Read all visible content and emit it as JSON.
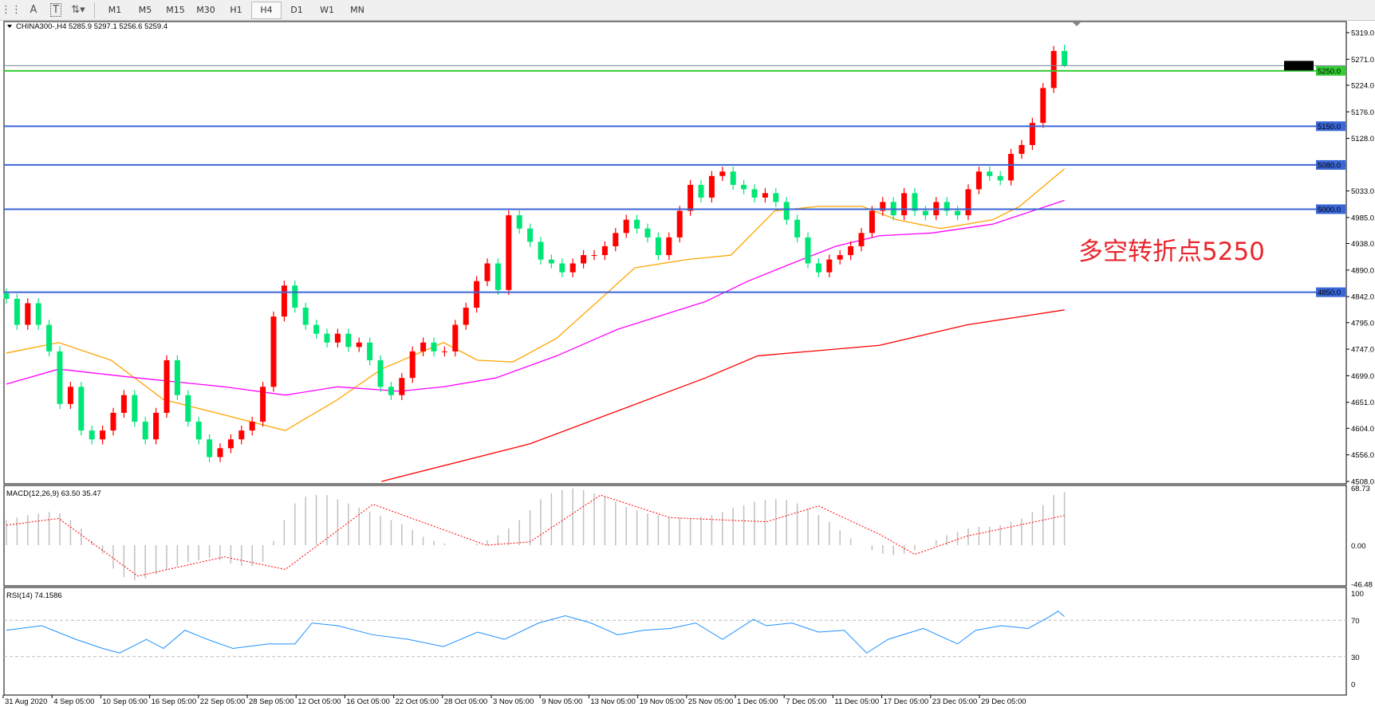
{
  "toolbar": {
    "icons": [
      "grid-period-separators-icon",
      "text-icon",
      "text-label-icon",
      "arrows-icon"
    ],
    "text_icon_glyph": "A",
    "text_label_glyph": "T",
    "timeframes": [
      "M1",
      "M5",
      "M15",
      "M30",
      "H1",
      "H4",
      "D1",
      "W1",
      "MN"
    ],
    "selected_timeframe": "H4"
  },
  "chart": {
    "header": "CHINA300-,H4  5285.9 5297.1 5256.6 5259.4",
    "symbol": "CHINA300-",
    "period": "H4",
    "last_ohlc": {
      "open": 5285.9,
      "high": 5297.1,
      "low": 5256.6,
      "close": 5259.4
    },
    "annotation": "多空转折点5250",
    "colors": {
      "bull": "#ff0000",
      "bear": "#00e676",
      "ma_fast": "#ffa500",
      "ma_mid": "#ff00ff",
      "ma_slow": "#ff0000",
      "level": "#3a66d6",
      "pivot_level": "#33cc33",
      "annotation": "#e8262d",
      "macd_hist": "#c0c0c0",
      "macd_signal": "#ff0000",
      "rsi": "#1e90ff"
    }
  },
  "chart_data": [
    {
      "type": "candlestick",
      "name": "CHINA300-,H4",
      "ylim": [
        4508,
        5319
      ],
      "y_ticks": [
        "5319.0",
        "5271.0",
        "5224.0",
        "5176.0",
        "5128.0",
        "5033.0",
        "4985.0",
        "4938.0",
        "4890.0",
        "4842.0",
        "4795.0",
        "4747.0",
        "4699.0",
        "4651.0",
        "4604.0",
        "4556.0",
        "4508.0"
      ],
      "x_ticks": [
        "31 Aug 2020",
        "4 Sep 05:00",
        "10 Sep 05:00",
        "16 Sep 05:00",
        "22 Sep 05:00",
        "28 Sep 05:00",
        "12 Oct 05:00",
        "16 Oct 05:00",
        "22 Oct 05:00",
        "28 Oct 05:00",
        "3 Nov 05:00",
        "9 Nov 05:00",
        "13 Nov 05:00",
        "19 Nov 05:00",
        "25 Nov 05:00",
        "1 Dec 05:00",
        "7 Dec 05:00",
        "11 Dec 05:00",
        "17 Dec 05:00",
        "23 Dec 05:00",
        "29 Dec 05:00"
      ],
      "closes": [
        4838,
        4791,
        4830,
        4791,
        4743,
        4648,
        4679,
        4600,
        4584,
        4600,
        4632,
        4664,
        4616,
        4584,
        4632,
        4727,
        4664,
        4616,
        4584,
        4552,
        4568,
        4584,
        4600,
        4616,
        4679,
        4806,
        4862,
        4822,
        4791,
        4775,
        4759,
        4775,
        4751,
        4759,
        4727,
        4679,
        4664,
        4695,
        4743,
        4759,
        4743,
        4743,
        4791,
        4822,
        4870,
        4902,
        4854,
        4989,
        4965,
        4941,
        4909,
        4902,
        4886,
        4902,
        4917,
        4917,
        4933,
        4957,
        4981,
        4965,
        4949,
        4917,
        4949,
        4997,
        5044,
        5021,
        5060,
        5068,
        5044,
        5036,
        5021,
        5029,
        5013,
        4981,
        4949,
        4902,
        4886,
        4909,
        4917,
        4933,
        4957,
        4997,
        5013,
        4989,
        5029,
        4997,
        4989,
        5013,
        4997,
        4989,
        5036,
        5068,
        5060,
        5052,
        5100,
        5116,
        5156,
        5219,
        5285.9,
        5259.4
      ],
      "moving_averages": [
        {
          "color": "#ffa500",
          "points": [
            [
              0,
              4740
            ],
            [
              4.9,
              4759
            ],
            [
              9.8,
              4727
            ],
            [
              14.7,
              4656
            ],
            [
              19.6,
              4632
            ],
            [
              26.1,
              4600
            ],
            [
              31,
              4656
            ],
            [
              35.1,
              4711
            ],
            [
              40.9,
              4759
            ],
            [
              44.1,
              4727
            ],
            [
              47.4,
              4724
            ],
            [
              51.5,
              4767
            ],
            [
              55.6,
              4838
            ],
            [
              58.8,
              4894
            ],
            [
              63.7,
              4909
            ],
            [
              67.8,
              4917
            ],
            [
              71.9,
              4997
            ],
            [
              76,
              5005
            ],
            [
              80.1,
              5005
            ],
            [
              83.3,
              4981
            ],
            [
              87.4,
              4965
            ],
            [
              92.3,
              4981
            ],
            [
              94.8,
              5005
            ],
            [
              99,
              5073
            ]
          ]
        },
        {
          "color": "#ff00ff",
          "points": [
            [
              0,
              4684
            ],
            [
              4.9,
              4711
            ],
            [
              12.3,
              4695
            ],
            [
              20.4,
              4679
            ],
            [
              26.1,
              4664
            ],
            [
              31,
              4679
            ],
            [
              36.8,
              4671
            ],
            [
              40.9,
              4679
            ],
            [
              45.8,
              4695
            ],
            [
              51.5,
              4735
            ],
            [
              57.2,
              4783
            ],
            [
              65.4,
              4833
            ],
            [
              69.4,
              4870
            ],
            [
              73.5,
              4902
            ],
            [
              77.6,
              4933
            ],
            [
              81.7,
              4952
            ],
            [
              86.6,
              4957
            ],
            [
              92.3,
              4973
            ],
            [
              99,
              5016
            ]
          ]
        },
        {
          "color": "#ff0000",
          "points": [
            [
              35.1,
              4508
            ],
            [
              49,
              4576
            ],
            [
              65.4,
              4695
            ],
            [
              70.3,
              4735
            ],
            [
              81.7,
              4754
            ],
            [
              89.9,
              4791
            ],
            [
              99,
              4818
            ]
          ]
        }
      ],
      "levels": [
        {
          "price": 5250.0,
          "label": "5250.0",
          "color": "#33cc33"
        },
        {
          "price": 5150.0,
          "label": "5150.0",
          "color": "#3a66d6"
        },
        {
          "price": 5080.0,
          "label": "5080.0",
          "color": "#3a66d6"
        },
        {
          "price": 5000.0,
          "label": "5000.0",
          "color": "#3a66d6"
        },
        {
          "price": 4850.0,
          "label": "4850.0",
          "color": "#3a66d6"
        }
      ],
      "bid_line": {
        "price": 5259.4,
        "label": "5259.4",
        "color": "#778899"
      }
    },
    {
      "type": "bar",
      "name": "MACD(12,26,9) 63.50 35.47",
      "label": "MACD(12,26,9) 63.50 35.47",
      "ylim": [
        -46.48,
        68.73
      ],
      "y_ticks": [
        "68.73",
        "0.00",
        "-46.48"
      ],
      "histogram": [
        30,
        33,
        36,
        38,
        40,
        38,
        30,
        20,
        5,
        -10,
        -28,
        -38,
        -42,
        -40,
        -35,
        -30,
        -25,
        -20,
        -18,
        -15,
        -18,
        -22,
        -25,
        -25,
        -20,
        5,
        30,
        50,
        58,
        60,
        60,
        55,
        50,
        45,
        40,
        35,
        30,
        25,
        18,
        10,
        5,
        2,
        0,
        0,
        2,
        6,
        12,
        20,
        30,
        42,
        55,
        62,
        66,
        68,
        66,
        62,
        58,
        52,
        46,
        42,
        38,
        36,
        34,
        33,
        32,
        34,
        36,
        40,
        45,
        48,
        52,
        54,
        55,
        54,
        50,
        44,
        36,
        28,
        18,
        8,
        0,
        -6,
        -10,
        -12,
        -10,
        -6,
        0,
        6,
        12,
        16,
        20,
        22,
        22,
        24,
        28,
        32,
        40,
        48,
        60,
        63.5
      ],
      "signal": [
        [
          0,
          24
        ],
        [
          4.9,
          32
        ],
        [
          12.3,
          -37
        ],
        [
          20.4,
          -14
        ],
        [
          26.1,
          -29
        ],
        [
          34.3,
          49
        ],
        [
          44.9,
          0
        ],
        [
          49,
          4
        ],
        [
          55.6,
          60
        ],
        [
          62.1,
          33
        ],
        [
          71.1,
          28
        ],
        [
          76,
          47
        ],
        [
          81.7,
          13
        ],
        [
          85,
          -11
        ],
        [
          89.9,
          11
        ],
        [
          99,
          35.47
        ]
      ]
    },
    {
      "type": "line",
      "name": "RSI(14) 74.1586",
      "label": "RSI(14) 74.1586",
      "ylim": [
        0,
        100
      ],
      "y_ticks": [
        "100",
        "70",
        "30",
        "0"
      ],
      "levels": [
        70,
        30
      ],
      "points": [
        [
          0,
          59
        ],
        [
          3.3,
          64
        ],
        [
          6.5,
          49
        ],
        [
          9,
          39
        ],
        [
          10.6,
          34
        ],
        [
          13.1,
          49
        ],
        [
          14.7,
          39
        ],
        [
          16.7,
          59
        ],
        [
          18.8,
          49
        ],
        [
          21.2,
          39
        ],
        [
          24.5,
          44
        ],
        [
          27,
          44
        ],
        [
          28.6,
          67
        ],
        [
          31,
          64
        ],
        [
          34.3,
          54
        ],
        [
          37.6,
          49
        ],
        [
          40.9,
          41
        ],
        [
          44.1,
          57
        ],
        [
          46.6,
          49
        ],
        [
          49.8,
          67
        ],
        [
          52.3,
          75
        ],
        [
          54.7,
          67
        ],
        [
          57.2,
          54
        ],
        [
          59.6,
          59
        ],
        [
          62.1,
          61
        ],
        [
          64.5,
          67
        ],
        [
          67,
          49
        ],
        [
          69.9,
          71
        ],
        [
          71.1,
          64
        ],
        [
          73.5,
          67
        ],
        [
          76,
          57
        ],
        [
          78.4,
          59
        ],
        [
          80.5,
          34
        ],
        [
          82.5,
          49
        ],
        [
          85.8,
          61
        ],
        [
          89,
          44
        ],
        [
          90.7,
          59
        ],
        [
          93.1,
          64
        ],
        [
          95.6,
          61
        ],
        [
          97.6,
          74
        ],
        [
          98.4,
          80
        ],
        [
          99,
          74.1586
        ]
      ]
    }
  ]
}
